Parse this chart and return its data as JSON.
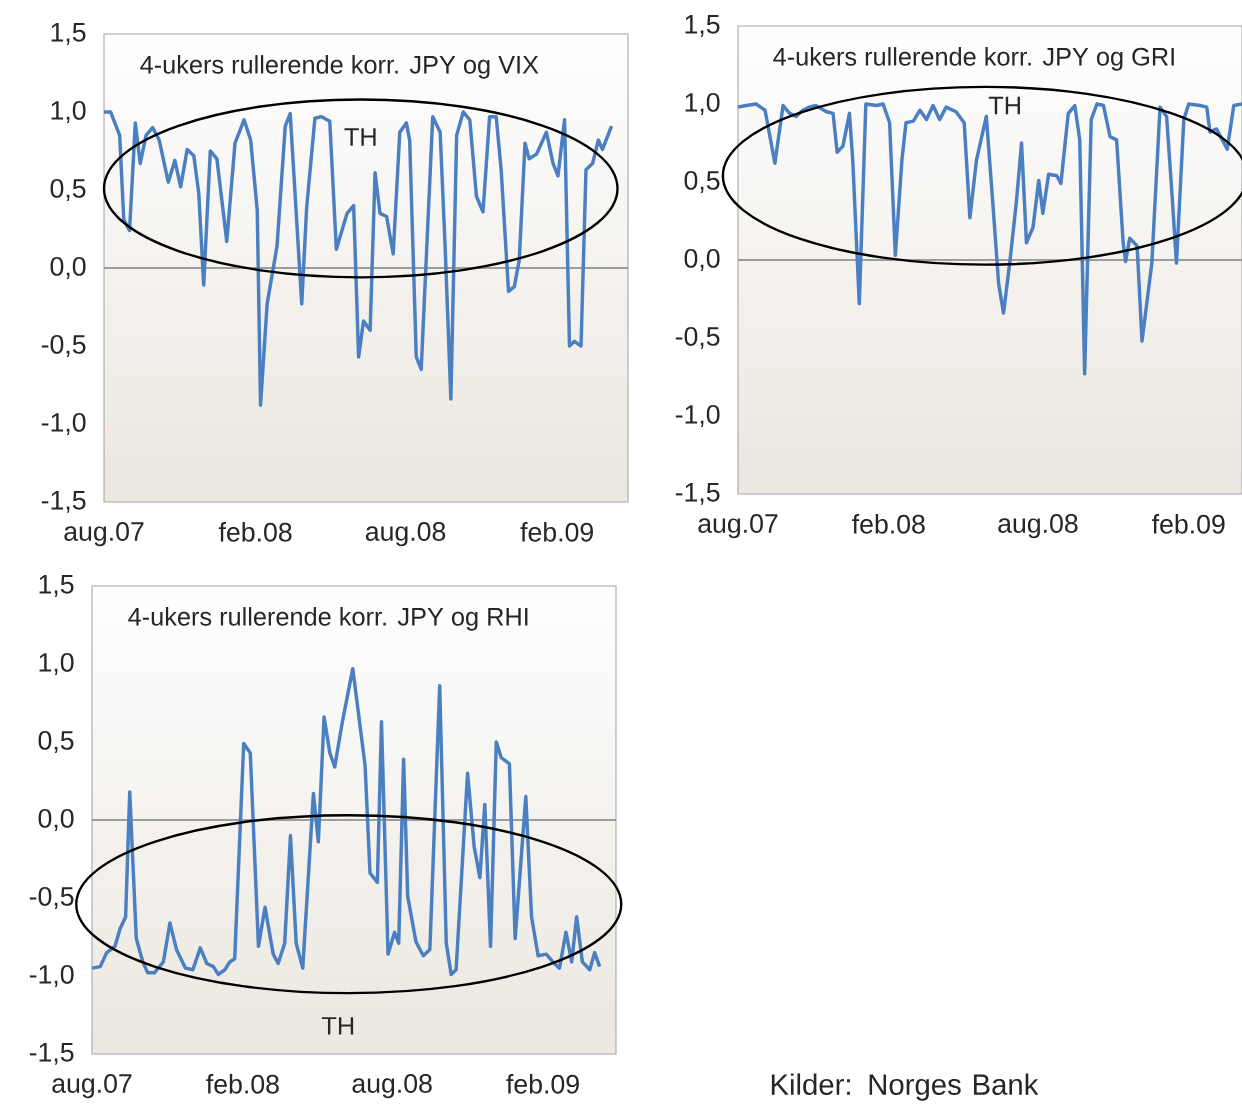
{
  "chart_data": [
    {
      "type": "line",
      "title": "4-ukers rullerende korr. JPY og VIX",
      "annotations": [
        "TH"
      ],
      "x": [
        "2007-08-01",
        "2007-08-09",
        "2007-08-20",
        "2007-08-25",
        "2007-09-01",
        "2007-09-08",
        "2007-09-14",
        "2007-09-21",
        "2007-09-29",
        "2007-10-07",
        "2007-10-18",
        "2007-10-26",
        "2007-11-02",
        "2007-11-10",
        "2007-11-18",
        "2007-11-24",
        "2007-11-30",
        "2007-12-08",
        "2007-12-16",
        "2007-12-28",
        "2008-01-07",
        "2008-01-18",
        "2008-01-26",
        "2008-02-03",
        "2008-02-07",
        "2008-02-15",
        "2008-02-27",
        "2008-03-08",
        "2008-03-14",
        "2008-03-28",
        "2008-04-03",
        "2008-04-13",
        "2008-04-21",
        "2008-05-01",
        "2008-05-09",
        "2008-05-22",
        "2008-05-30",
        "2008-06-05",
        "2008-06-11",
        "2008-06-19",
        "2008-06-25",
        "2008-07-01",
        "2008-07-09",
        "2008-07-17",
        "2008-07-25",
        "2008-08-02",
        "2008-08-06",
        "2008-08-14",
        "2008-08-20",
        "2008-09-03",
        "2008-09-12",
        "2008-09-18",
        "2008-09-25",
        "2008-10-02",
        "2008-10-10",
        "2008-10-18",
        "2008-10-26",
        "2008-11-03",
        "2008-11-11",
        "2008-11-19",
        "2008-11-25",
        "2008-12-04",
        "2008-12-11",
        "2008-12-17",
        "2008-12-24",
        "2008-12-29",
        "2009-01-07",
        "2009-01-19",
        "2009-01-27",
        "2009-02-02",
        "2009-02-10",
        "2009-02-16",
        "2009-02-22",
        "2009-03-02",
        "2009-03-08",
        "2009-03-16",
        "2009-03-23",
        "2009-03-28",
        "2009-04-08"
      ],
      "series": [
        {
          "color": "#4a7fc1",
          "values": [
            1.0,
            1.0,
            0.85,
            0.31,
            0.24,
            0.93,
            0.67,
            0.85,
            0.9,
            0.82,
            0.55,
            0.69,
            0.52,
            0.76,
            0.72,
            0.48,
            -0.11,
            0.75,
            0.7,
            0.17,
            0.8,
            0.95,
            0.82,
            0.37,
            -0.88,
            -0.23,
            0.14,
            0.91,
            0.99,
            -0.23,
            0.39,
            0.96,
            0.97,
            0.94,
            0.12,
            0.35,
            0.4,
            -0.57,
            -0.34,
            -0.4,
            0.61,
            0.35,
            0.33,
            0.09,
            0.87,
            0.93,
            0.82,
            -0.57,
            -0.65,
            0.97,
            0.87,
            0.14,
            -0.84,
            0.85,
            1.0,
            0.95,
            0.46,
            0.36,
            0.97,
            0.97,
            0.63,
            -0.15,
            -0.12,
            0.05,
            0.8,
            0.7,
            0.73,
            0.87,
            0.67,
            0.59,
            0.95,
            -0.5,
            -0.47,
            -0.5,
            0.63,
            0.67,
            0.82,
            0.76,
            0.91
          ]
        }
      ],
      "xlim": [
        "2007-08-01",
        "2009-04-28"
      ],
      "ylim": [
        -1.5,
        1.5
      ],
      "xticks": [
        {
          "value": "2007-08-01",
          "label": "aug.07"
        },
        {
          "value": "2008-02-01",
          "label": "feb.08"
        },
        {
          "value": "2008-08-01",
          "label": "aug.08"
        },
        {
          "value": "2009-02-01",
          "label": "feb.09"
        }
      ],
      "yticks": [
        {
          "value": -1.5,
          "label": "-1,5"
        },
        {
          "value": -1.0,
          "label": "-1,0"
        },
        {
          "value": -0.5,
          "label": "-0,5"
        },
        {
          "value": 0,
          "label": "0,0"
        },
        {
          "value": 0.5,
          "label": "0,5"
        },
        {
          "value": 1.0,
          "label": "1,0"
        },
        {
          "value": 1.5,
          "label": "1,5"
        }
      ],
      "ref_lines": [
        {
          "axis": "y",
          "value": 0,
          "color": "#808080"
        }
      ]
    },
    {
      "type": "line",
      "title": "4-ukers rullerende korr. JPY og GRI",
      "annotations": [
        "TH"
      ],
      "x": [
        "2007-08-01",
        "2007-08-11",
        "2007-08-23",
        "2007-09-03",
        "2007-09-15",
        "2007-09-25",
        "2007-10-03",
        "2007-10-11",
        "2007-10-19",
        "2007-10-27",
        "2007-11-04",
        "2007-11-17",
        "2007-11-25",
        "2007-11-30",
        "2007-12-07",
        "2007-12-15",
        "2007-12-19",
        "2007-12-27",
        "2008-01-04",
        "2008-01-17",
        "2008-01-25",
        "2008-02-02",
        "2008-02-09",
        "2008-02-17",
        "2008-02-22",
        "2008-03-02",
        "2008-03-10",
        "2008-03-18",
        "2008-03-26",
        "2008-04-03",
        "2008-04-11",
        "2008-04-23",
        "2008-05-03",
        "2008-05-10",
        "2008-05-18",
        "2008-05-30",
        "2008-06-07",
        "2008-06-14",
        "2008-06-20",
        "2008-06-28",
        "2008-07-06",
        "2008-07-12",
        "2008-07-18",
        "2008-07-26",
        "2008-08-02",
        "2008-08-07",
        "2008-08-14",
        "2008-08-24",
        "2008-08-29",
        "2008-09-07",
        "2008-09-15",
        "2008-09-21",
        "2008-09-27",
        "2008-10-05",
        "2008-10-12",
        "2008-10-20",
        "2008-10-28",
        "2008-11-05",
        "2008-11-13",
        "2008-11-16",
        "2008-11-21",
        "2008-11-30",
        "2008-12-06",
        "2008-12-18",
        "2008-12-28",
        "2009-01-05",
        "2009-01-12",
        "2009-01-17",
        "2009-01-26",
        "2009-02-01",
        "2009-02-15",
        "2009-02-23",
        "2009-02-27",
        "2009-03-07",
        "2009-03-20",
        "2009-03-28",
        "2009-04-07"
      ],
      "series": [
        {
          "color": "#4a7fc1",
          "values": [
            0.98,
            0.99,
            1.0,
            0.96,
            0.62,
            0.99,
            0.94,
            0.92,
            0.96,
            0.98,
            0.99,
            0.95,
            0.94,
            0.69,
            0.73,
            0.94,
            0.64,
            -0.28,
            1.0,
            0.99,
            1.0,
            0.88,
            0.03,
            0.64,
            0.88,
            0.89,
            0.96,
            0.9,
            0.99,
            0.9,
            0.98,
            0.95,
            0.88,
            0.27,
            0.64,
            0.92,
            0.36,
            -0.15,
            -0.34,
            0.0,
            0.39,
            0.75,
            0.11,
            0.21,
            0.51,
            0.3,
            0.55,
            0.54,
            0.49,
            0.94,
            0.99,
            0.77,
            -0.73,
            0.9,
            1.0,
            0.99,
            0.79,
            0.77,
            0.11,
            -0.01,
            0.14,
            0.09,
            -0.52,
            -0.02,
            0.98,
            0.92,
            0.39,
            -0.02,
            0.9,
            1.0,
            0.99,
            0.98,
            0.82,
            0.84,
            0.71,
            0.99,
            1.0
          ]
        }
      ],
      "xlim": [
        "2007-08-01",
        "2009-04-07"
      ],
      "ylim": [
        -1.5,
        1.5
      ],
      "xticks": [
        {
          "value": "2007-08-01",
          "label": "aug.07"
        },
        {
          "value": "2008-02-01",
          "label": "feb.08"
        },
        {
          "value": "2008-08-01",
          "label": "aug.08"
        },
        {
          "value": "2009-02-01",
          "label": "feb.09"
        }
      ],
      "yticks": [
        {
          "value": -1.5,
          "label": "-1,5"
        },
        {
          "value": -1.0,
          "label": "-1,0"
        },
        {
          "value": -0.5,
          "label": "-0,5"
        },
        {
          "value": 0,
          "label": "0,0"
        },
        {
          "value": 0.5,
          "label": "0,5"
        },
        {
          "value": 1.0,
          "label": "1,0"
        },
        {
          "value": 1.5,
          "label": "1,5"
        }
      ],
      "ref_lines": [
        {
          "axis": "y",
          "value": 0,
          "color": "#808080"
        }
      ]
    },
    {
      "type": "line",
      "title": "4-ukers rullerende korr. JPY og RHI",
      "annotations": [
        "TH",
        "Kilder: Norges Bank"
      ],
      "x": [
        "2007-08-01",
        "2007-08-11",
        "2007-08-19",
        "2007-08-29",
        "2007-09-04",
        "2007-09-11",
        "2007-09-16",
        "2007-09-24",
        "2007-10-02",
        "2007-10-08",
        "2007-10-16",
        "2007-10-27",
        "2007-11-04",
        "2007-11-12",
        "2007-11-23",
        "2007-12-02",
        "2007-12-11",
        "2007-12-19",
        "2007-12-27",
        "2008-01-02",
        "2008-01-10",
        "2008-01-16",
        "2008-01-22",
        "2008-02-02",
        "2008-02-10",
        "2008-02-20",
        "2008-02-28",
        "2008-03-09",
        "2008-03-15",
        "2008-03-23",
        "2008-03-30",
        "2008-04-06",
        "2008-04-14",
        "2008-04-27",
        "2008-05-03",
        "2008-05-10",
        "2008-05-17",
        "2008-05-23",
        "2008-06-01",
        "2008-06-14",
        "2008-06-29",
        "2008-07-05",
        "2008-07-14",
        "2008-07-19",
        "2008-07-27",
        "2008-08-04",
        "2008-08-09",
        "2008-08-15",
        "2008-08-20",
        "2008-08-30",
        "2008-09-08",
        "2008-09-16",
        "2008-09-28",
        "2008-10-06",
        "2008-10-12",
        "2008-10-18",
        "2008-11-01",
        "2008-11-09",
        "2008-11-16",
        "2008-11-22",
        "2008-11-29",
        "2008-12-06",
        "2008-12-12",
        "2008-12-22",
        "2008-12-29",
        "2009-01-11",
        "2009-01-18",
        "2009-01-26",
        "2009-02-05",
        "2009-02-13",
        "2009-02-21",
        "2009-03-01",
        "2009-03-08",
        "2009-03-14",
        "2009-03-21",
        "2009-03-30",
        "2009-04-05",
        "2009-04-11"
      ],
      "series": [
        {
          "color": "#4a7fc1",
          "values": [
            -0.95,
            -0.94,
            -0.85,
            -0.81,
            -0.7,
            -0.62,
            0.18,
            -0.76,
            -0.91,
            -0.98,
            -0.98,
            -0.91,
            -0.66,
            -0.83,
            -0.95,
            -0.96,
            -0.82,
            -0.92,
            -0.94,
            -0.99,
            -0.96,
            -0.91,
            -0.89,
            0.49,
            0.43,
            -0.81,
            -0.56,
            -0.86,
            -0.92,
            -0.79,
            -0.1,
            -0.79,
            -0.95,
            0.17,
            -0.14,
            0.66,
            0.43,
            0.34,
            0.62,
            0.97,
            0.35,
            -0.34,
            -0.4,
            0.63,
            -0.86,
            -0.72,
            -0.79,
            0.39,
            -0.49,
            -0.78,
            -0.87,
            -0.83,
            0.86,
            -0.79,
            -0.99,
            -0.96,
            0.3,
            -0.17,
            -0.37,
            0.1,
            -0.81,
            0.5,
            0.4,
            0.36,
            -0.76,
            0.15,
            -0.62,
            -0.87,
            -0.86,
            -0.91,
            -0.95,
            -0.72,
            -0.91,
            -0.62,
            -0.91,
            -0.96,
            -0.85,
            -0.94
          ]
        }
      ],
      "xlim": [
        "2007-08-01",
        "2009-05-01"
      ],
      "ylim": [
        -1.5,
        1.5
      ],
      "xticks": [
        {
          "value": "2007-08-01",
          "label": "aug.07"
        },
        {
          "value": "2008-02-01",
          "label": "feb.08"
        },
        {
          "value": "2008-08-01",
          "label": "aug.08"
        },
        {
          "value": "2009-02-01",
          "label": "feb.09"
        }
      ],
      "yticks": [
        {
          "value": -1.5,
          "label": "-1,5"
        },
        {
          "value": -1.0,
          "label": "-1,0"
        },
        {
          "value": -0.5,
          "label": "-0,5"
        },
        {
          "value": 0,
          "label": "0,0"
        },
        {
          "value": 0.5,
          "label": "0,5"
        },
        {
          "value": 1.0,
          "label": "1,0"
        },
        {
          "value": 1.5,
          "label": "1,5"
        }
      ],
      "ref_lines": [
        {
          "axis": "y",
          "value": 0,
          "color": "#808080"
        }
      ]
    }
  ]
}
